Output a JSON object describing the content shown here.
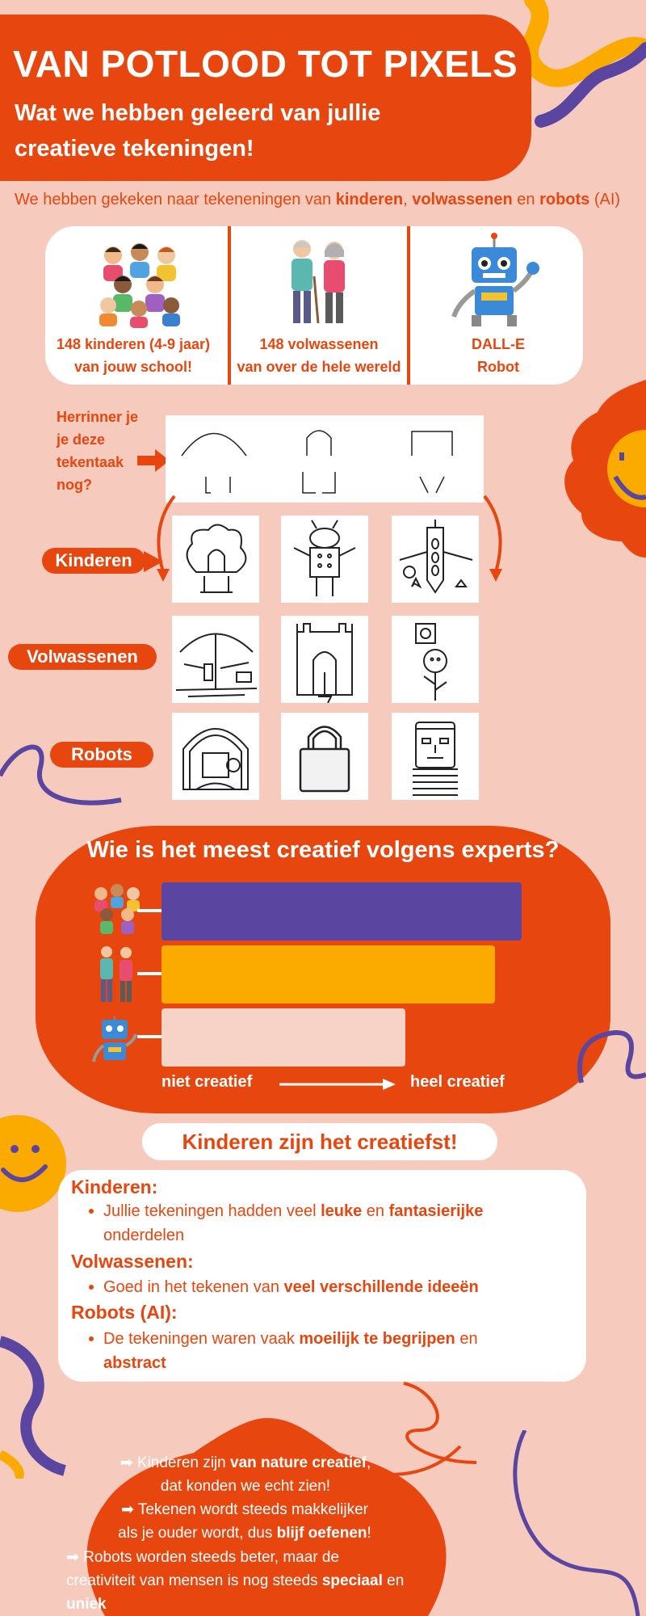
{
  "header": {
    "title": "VAN POTLOOD TOT PIXELS",
    "subtitle": "Wat we hebben geleerd van jullie creatieve tekeningen!"
  },
  "intro": {
    "prefix": "We hebben gekeken naar tekeneningen van ",
    "w1": "kinderen",
    "sep1": ", ",
    "w2": "volwassenen",
    "sep2": " en ",
    "w3": "robots",
    "suffix": " (AI)"
  },
  "groups": [
    {
      "label": "148 kinderen (4-9 jaar)\nvan jouw school!"
    },
    {
      "label": "148 volwassenen\nvan over de hele wereld"
    },
    {
      "label": "DALL-E\nRobot"
    }
  ],
  "reminder": "Herrinner je je deze tekentaak nog?",
  "rows": {
    "kinderen": "Kinderen",
    "volwassenen": "Volwassenen",
    "robots": "Robots"
  },
  "chart_data": {
    "type": "bar",
    "title": "Wie is het meest creatief volgens experts?",
    "categories": [
      "Kinderen",
      "Volwassenen",
      "Robots"
    ],
    "values": [
      0.93,
      0.86,
      0.63
    ],
    "colors": [
      "#5a46a0",
      "#fbab00",
      "#f6d2c7"
    ],
    "axis_left": "niet creatief",
    "axis_right": "heel creatief",
    "range": [
      0,
      1
    ]
  },
  "conclusion": "Kinderen zijn het creatiefst!",
  "findings": {
    "kinderen_head": "Kinderen:",
    "kinderen_text": [
      "Jullie tekeningen hadden veel ",
      "leuke",
      " en ",
      "fantasierijke",
      " onderdelen"
    ],
    "volwassenen_head": "Volwassenen:",
    "volwassenen_text": [
      "Goed in het tekenen van ",
      "veel verschillende ideeën"
    ],
    "robots_head": "Robots (AI):",
    "robots_text": [
      "De tekeningen waren vaak ",
      "moeilijk te begrijpen",
      " en ",
      "abstract"
    ]
  },
  "tips": {
    "t1": [
      "Kinderen zijn ",
      "van nature",
      " ",
      "creatief",
      ", dat konden we echt zien!"
    ],
    "t2": [
      "Tekenen wordt steeds makkelijker",
      "als je ouder wordt, dus ",
      "blijf oefenen",
      "!"
    ],
    "t3": [
      "Robots worden steeds beter, maar de",
      "creativiteit van mensen is nog steeds ",
      "speciaal",
      " en",
      "uniek"
    ]
  },
  "colors": {
    "orange": "#e8460f",
    "purple": "#5a46a0",
    "yellow": "#fbab00",
    "background": "#f6cbbd"
  }
}
